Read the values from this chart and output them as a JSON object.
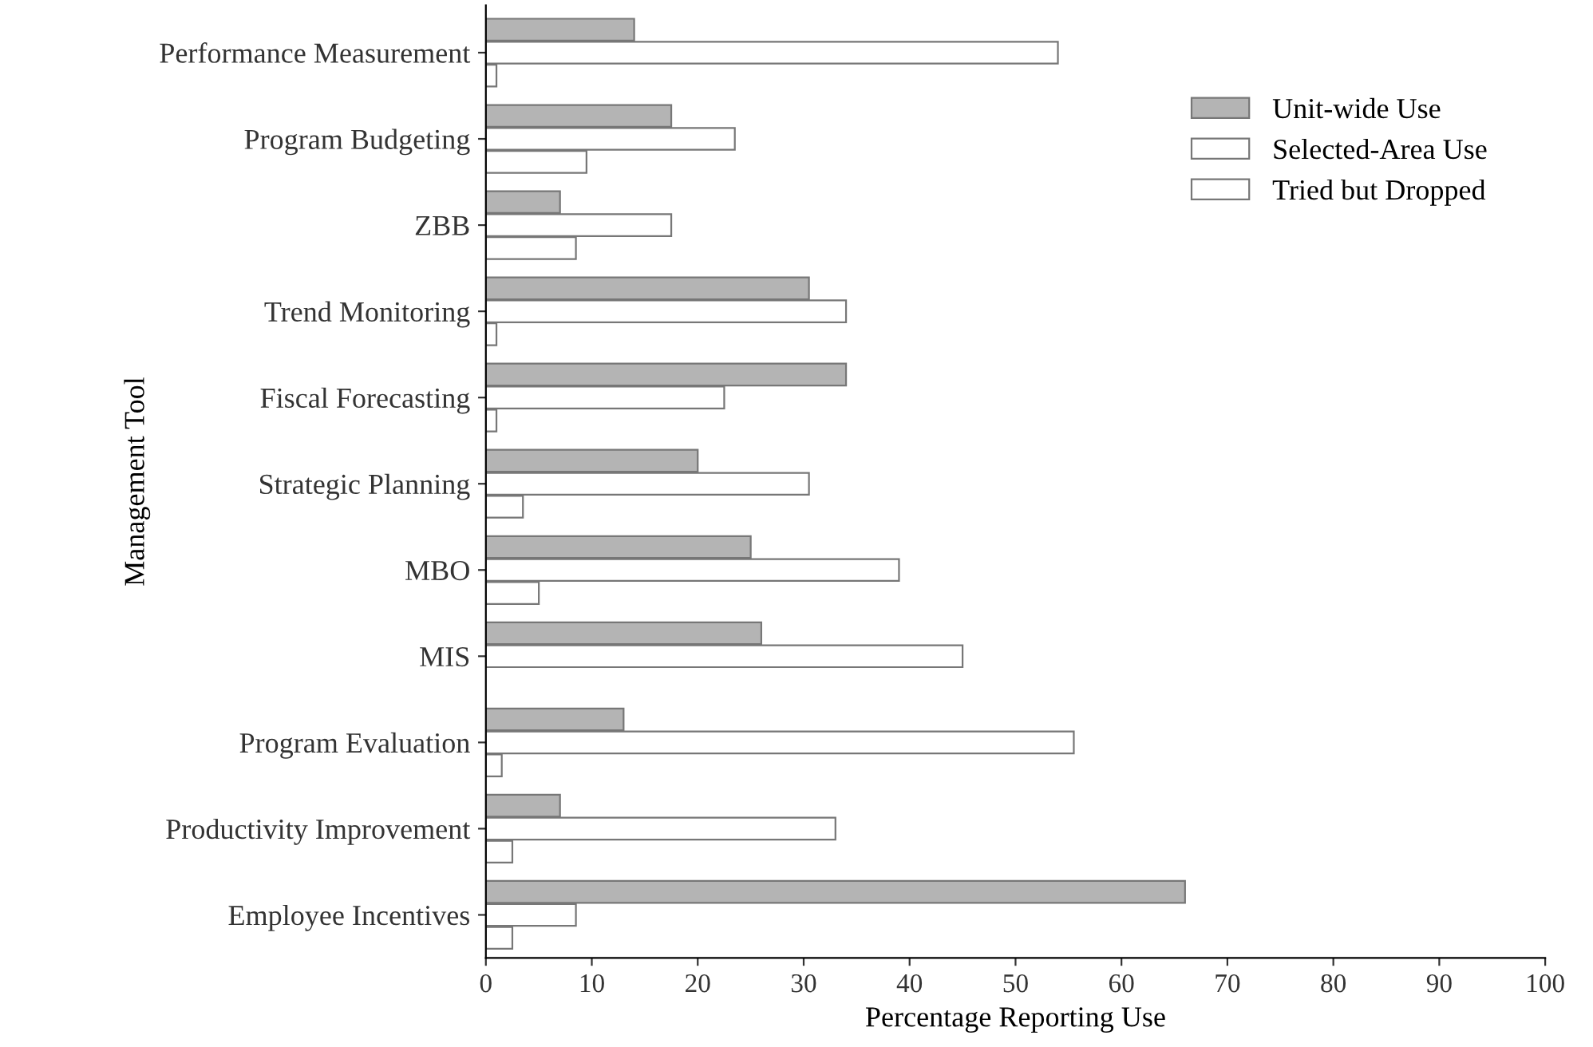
{
  "chart_data": {
    "type": "bar",
    "orientation": "horizontal",
    "xlabel": "Percentage Reporting Use",
    "ylabel": "Management Tool",
    "categories": [
      "Performance Measurement",
      "Program Budgeting",
      "ZBB",
      "Trend Monitoring",
      "Fiscal Forecasting",
      "Strategic Planning",
      "MBO",
      "MIS",
      "Program Evaluation",
      "Productivity Improvement",
      "Employee Incentives"
    ],
    "series": [
      {
        "name": "Unit-wide Use",
        "color": "#b4b4b4",
        "values": [
          14,
          17.5,
          7,
          30.5,
          34,
          20,
          25,
          26,
          13,
          7,
          66
        ]
      },
      {
        "name": "Selected-Area Use",
        "color": "#ffffff",
        "values": [
          54,
          23.5,
          17.5,
          34,
          22.5,
          30.5,
          39,
          45,
          55.5,
          33,
          8.5
        ]
      },
      {
        "name": "Tried but Dropped",
        "color": "#ffffff",
        "values": [
          1,
          9.5,
          8.5,
          1,
          1,
          3.5,
          5,
          null,
          1.5,
          2.5,
          2.5
        ]
      }
    ],
    "xlim": [
      0,
      100
    ],
    "xticks": [
      0,
      10,
      20,
      30,
      40,
      50,
      60,
      70,
      80,
      90,
      100
    ],
    "grid": false,
    "legend": "top right"
  }
}
